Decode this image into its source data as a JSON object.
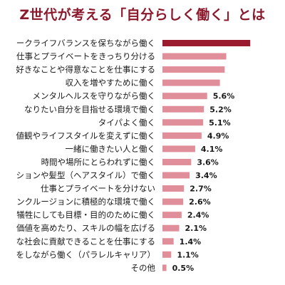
{
  "chart_data": {
    "type": "bar",
    "orientation": "horizontal",
    "title": "Z世代が考える「自分らしく働く」とは",
    "categories": [
      "ークライフバランスを保ちながら働く",
      "仕事とプライベートをきっちり分ける",
      "好きなことや得意なことを仕事にする",
      "収入を増やすために働く",
      "メンタルヘルスを守りながら働く",
      "なりたい自分を目指せる環境で働く",
      "タイパよく働く",
      "値観やライフスタイルを変えずに働く",
      "一緒に働きたい人と働く",
      "時間や場所にとらわれずに働く",
      "ションや髪型（ヘアスタイル）で働く",
      "仕事とプライベートを分けない",
      "ンクルージョンに積極的な環境で働く",
      "犠牲にしても目標・目的のために働く",
      "価値を高めたり、スキルの幅を広げる",
      "な社会に貢献できることを仕事にする",
      "をしながら働く（パラレルキャリア）",
      "その他"
    ],
    "values": [
      null,
      null,
      null,
      null,
      5.6,
      5.2,
      5.1,
      4.9,
      4.1,
      3.6,
      3.4,
      2.7,
      2.6,
      2.4,
      2.1,
      1.4,
      1.1,
      0.5
    ],
    "estimated_values_cut_off": [
      11.0,
      8.0,
      7.8,
      7.2,
      null,
      null,
      null,
      null,
      null,
      null,
      null,
      null,
      null,
      null,
      null,
      null,
      null,
      null
    ],
    "value_labels": [
      "",
      "",
      "",
      "",
      "5.6%",
      "5.2%",
      "5.1%",
      "4.9%",
      "4.1%",
      "3.6%",
      "3.4%",
      "2.7%",
      "2.6%",
      "2.4%",
      "2.1%",
      "1.4%",
      "1.1%",
      "0.5%"
    ],
    "unit": "%",
    "colors": {
      "top_bar": "#9b1b2e",
      "bars": "#e08f9a",
      "title": "#8b1a2c"
    }
  }
}
